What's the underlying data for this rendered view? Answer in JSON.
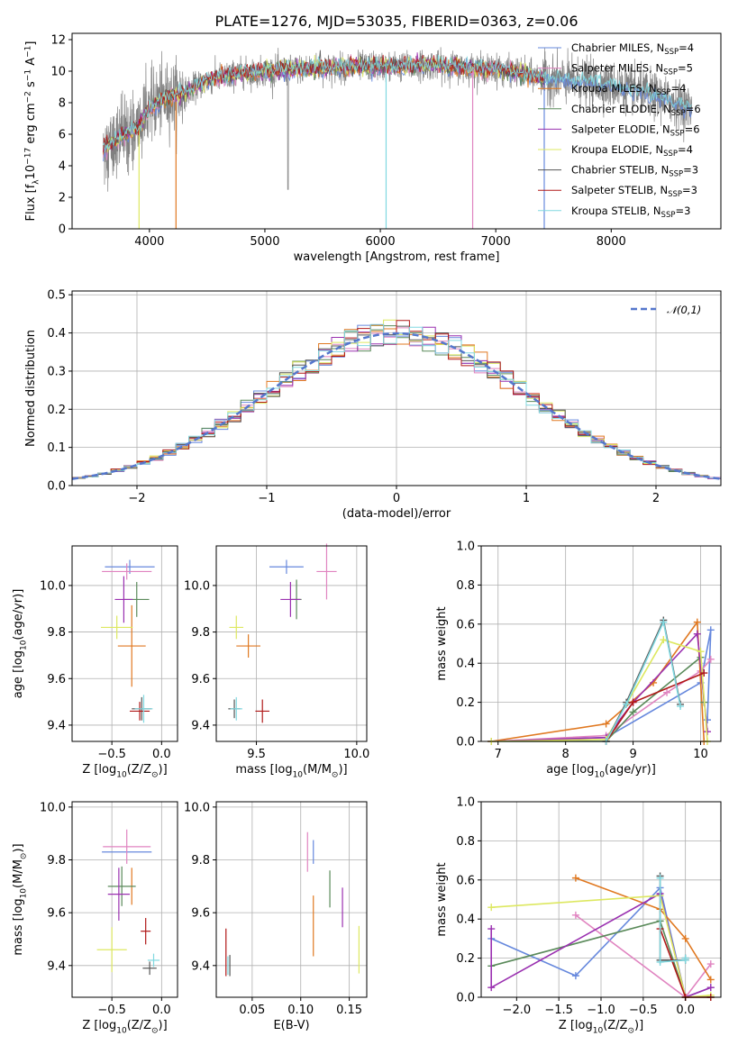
{
  "chart_data": [
    {
      "type": "line",
      "title": "PLATE=1276, MJD=53035, FIBERID=0363, z=0.06",
      "xlabel": "wavelength [Angstrom, rest frame]",
      "ylabel": "Flux [f$_\\lambda$10$^{-17}$ erg cm$^{-2}$ s$^{-1}$ A$^{-1}$]",
      "xlim": [
        3330,
        8950
      ],
      "ylim": [
        0,
        12.4
      ],
      "xticks": [
        "4000",
        "5000",
        "6000",
        "7000",
        "8000"
      ],
      "yticks": [
        "0",
        "2",
        "4",
        "6",
        "8",
        "10",
        "12"
      ],
      "grid": false,
      "legend_position": "upper-right",
      "series": [
        {
          "name": "Chabrier MILES, N",
          "sub": "SSP",
          "suffix": "=4",
          "color": "#6688dd"
        },
        {
          "name": "Salpeter MILES, N",
          "sub": "SSP",
          "suffix": "=5",
          "color": "#e084c0"
        },
        {
          "name": "Kroupa MILES, N",
          "sub": "SSP",
          "suffix": "=4",
          "color": "#e07820"
        },
        {
          "name": "Chabrier ELODIE, N",
          "sub": "SSP",
          "suffix": "=6",
          "color": "#5a8a5a"
        },
        {
          "name": "Salpeter ELODIE, N",
          "sub": "SSP",
          "suffix": "=6",
          "color": "#9a30b0"
        },
        {
          "name": "Kroupa ELODIE, N",
          "sub": "SSP",
          "suffix": "=4",
          "color": "#dde860"
        },
        {
          "name": "Chabrier STELIB, N",
          "sub": "SSP",
          "suffix": "=3",
          "color": "#555555"
        },
        {
          "name": "Salpeter STELIB, N",
          "sub": "SSP",
          "suffix": "=3",
          "color": "#b01818"
        },
        {
          "name": "Kroupa STELIB, N",
          "sub": "SSP",
          "suffix": "=3",
          "color": "#80d8e0"
        }
      ],
      "data_color": "#808080",
      "continuum": {
        "x": [
          3600,
          3700,
          3800,
          3900,
          4000,
          4100,
          4200,
          4300,
          4400,
          4500,
          4600,
          4700,
          4800,
          4900,
          5000,
          5200,
          5400,
          5600,
          5800,
          6000,
          6200,
          6400,
          6600,
          6800,
          7000,
          7200,
          7400,
          7600,
          7800,
          8000,
          8200,
          8400,
          8600,
          8700
        ],
        "y": [
          5.0,
          5.6,
          6.0,
          6.4,
          7.6,
          8.2,
          8.4,
          8.6,
          9.0,
          9.4,
          9.6,
          9.7,
          9.9,
          9.9,
          10.0,
          10.1,
          10.2,
          10.2,
          10.3,
          10.3,
          10.3,
          10.4,
          10.3,
          10.2,
          10.1,
          9.9,
          9.6,
          9.4,
          9.3,
          9.1,
          8.8,
          8.4,
          7.9,
          7.6
        ]
      }
    },
    {
      "type": "line",
      "xlabel": "(data-model)/error",
      "ylabel": "Normed distribution",
      "xlim": [
        -2.5,
        2.5
      ],
      "ylim": [
        0,
        0.51
      ],
      "xticks": [
        "−2",
        "−1",
        "0",
        "1",
        "2"
      ],
      "yticks": [
        "0.0",
        "0.1",
        "0.2",
        "0.3",
        "0.4",
        "0.5"
      ],
      "grid": true,
      "legend": "$\\mathcal{N}(0,1)$",
      "gaussian": {
        "mean": 0,
        "sigma": 1,
        "color": "#5577cc"
      },
      "hist_bin_width": 0.1
    },
    {
      "type": "scatter",
      "xlabel": "Z [log$_{10}$(Z/Z$_\\odot$)]",
      "ylabel": "age  [log$_{10}$(age/yr)]",
      "xlim": [
        -0.9,
        0.16
      ],
      "ylim": [
        9.33,
        10.17
      ],
      "xticks": [
        "−0.5",
        "0.0"
      ],
      "yticks": [
        "9.4",
        "9.6",
        "9.8",
        "10.0"
      ],
      "grid": true,
      "points": [
        {
          "x": -0.32,
          "y": 10.08,
          "dx": 0.5,
          "dy": 0.06,
          "color": "#6688dd"
        },
        {
          "x": -0.35,
          "y": 10.06,
          "dx": 0.5,
          "dy": 0.07,
          "color": "#e084c0"
        },
        {
          "x": -0.3,
          "y": 9.74,
          "dx": 0.28,
          "dy": 0.35,
          "color": "#e07820"
        },
        {
          "x": -0.25,
          "y": 9.94,
          "dx": 0.25,
          "dy": 0.15,
          "color": "#5a8a5a"
        },
        {
          "x": -0.38,
          "y": 9.94,
          "dx": 0.18,
          "dy": 0.2,
          "color": "#9a30b0"
        },
        {
          "x": -0.45,
          "y": 9.82,
          "dx": 0.32,
          "dy": 0.1,
          "color": "#dde860"
        },
        {
          "x": -0.2,
          "y": 9.47,
          "dx": 0.2,
          "dy": 0.1,
          "color": "#555555"
        },
        {
          "x": -0.22,
          "y": 9.46,
          "dx": 0.2,
          "dy": 0.08,
          "color": "#b01818"
        },
        {
          "x": -0.18,
          "y": 9.47,
          "dx": 0.18,
          "dy": 0.12,
          "color": "#80d8e0"
        }
      ]
    },
    {
      "type": "scatter",
      "xlabel": "mass [log$_{10}$(M/M$_\\odot$)]",
      "xlim": [
        9.3,
        10.05
      ],
      "ylim": [
        9.33,
        10.17
      ],
      "xticks": [
        "9.5",
        "10.0"
      ],
      "yticks": [
        "9.4",
        "9.6",
        "9.8",
        "10.0"
      ],
      "grid": true,
      "points": [
        {
          "x": 9.65,
          "y": 10.08,
          "dx": 0.17,
          "dy": 0.06,
          "color": "#6688dd"
        },
        {
          "x": 9.85,
          "y": 10.06,
          "dx": 0.1,
          "dy": 0.24,
          "color": "#e084c0"
        },
        {
          "x": 9.46,
          "y": 9.74,
          "dx": 0.12,
          "dy": 0.1,
          "color": "#e07820"
        },
        {
          "x": 9.7,
          "y": 9.94,
          "dx": 0.05,
          "dy": 0.17,
          "color": "#5a8a5a"
        },
        {
          "x": 9.67,
          "y": 9.94,
          "dx": 0.1,
          "dy": 0.15,
          "color": "#9a30b0"
        },
        {
          "x": 9.4,
          "y": 9.82,
          "dx": 0.07,
          "dy": 0.1,
          "color": "#dde860"
        },
        {
          "x": 9.39,
          "y": 9.47,
          "dx": 0.06,
          "dy": 0.08,
          "color": "#555555"
        },
        {
          "x": 9.53,
          "y": 9.46,
          "dx": 0.07,
          "dy": 0.1,
          "color": "#b01818"
        },
        {
          "x": 9.4,
          "y": 9.47,
          "dx": 0.06,
          "dy": 0.1,
          "color": "#80d8e0"
        }
      ]
    },
    {
      "type": "line",
      "xlabel": "age  [log$_{10}$(age/yr)]",
      "ylabel": "mass weight",
      "xlim": [
        6.75,
        10.3
      ],
      "ylim": [
        0,
        1.0
      ],
      "xticks": [
        "7",
        "8",
        "9",
        "10"
      ],
      "yticks": [
        "0.0",
        "0.2",
        "0.4",
        "0.6",
        "0.8",
        "1.0"
      ],
      "grid": true,
      "series": [
        {
          "color": "#6688dd",
          "x": [
            6.9,
            8.6,
            10.0,
            10.15,
            10.1
          ],
          "y": [
            0.0,
            0.02,
            0.3,
            0.57,
            0.11
          ]
        },
        {
          "color": "#e084c0",
          "x": [
            6.9,
            8.6,
            9.5,
            10.0,
            10.15
          ],
          "y": [
            0.0,
            0.03,
            0.25,
            0.36,
            0.42
          ]
        },
        {
          "color": "#e07820",
          "x": [
            6.9,
            8.6,
            9.3,
            9.95,
            10.05
          ],
          "y": [
            0.0,
            0.09,
            0.3,
            0.61,
            0.0
          ]
        },
        {
          "color": "#5a8a5a",
          "x": [
            6.9,
            8.6,
            9.0,
            10.0,
            10.05
          ],
          "y": [
            0.0,
            0.0,
            0.15,
            0.43,
            0.2
          ]
        },
        {
          "color": "#9a30b0",
          "x": [
            6.9,
            8.6,
            9.0,
            9.95,
            10.1
          ],
          "y": [
            0.0,
            0.02,
            0.2,
            0.55,
            0.05
          ]
        },
        {
          "color": "#dde860",
          "x": [
            6.9,
            8.6,
            9.45,
            10.0,
            10.1
          ],
          "y": [
            0.0,
            0.01,
            0.52,
            0.46,
            0.0
          ]
        },
        {
          "color": "#555555",
          "x": [
            8.6,
            8.9,
            9.45,
            9.7
          ],
          "y": [
            0.0,
            0.2,
            0.62,
            0.19
          ]
        },
        {
          "color": "#b01818",
          "x": [
            8.6,
            9.0,
            10.05
          ],
          "y": [
            0.0,
            0.2,
            0.35
          ]
        },
        {
          "color": "#80d8e0",
          "x": [
            8.6,
            8.9,
            9.45,
            9.7
          ],
          "y": [
            0.0,
            0.19,
            0.61,
            0.18
          ]
        }
      ]
    },
    {
      "type": "scatter",
      "xlabel": "Z [log$_{10}$(Z/Z$_\\odot$)]",
      "ylabel": "mass [log$_{10}$(M/M$_\\odot$)]",
      "xlim": [
        -0.9,
        0.16
      ],
      "ylim": [
        9.28,
        10.02
      ],
      "xticks": [
        "−0.5",
        "0.0"
      ],
      "yticks": [
        "9.4",
        "9.6",
        "9.8",
        "10.0"
      ],
      "grid": true,
      "points": [
        {
          "x": -0.35,
          "y": 9.83,
          "dx": 0.5,
          "dy": 0.0,
          "color": "#6688dd"
        },
        {
          "x": -0.35,
          "y": 9.85,
          "dx": 0.48,
          "dy": 0.13,
          "color": "#e084c0"
        },
        {
          "x": -0.3,
          "y": 9.7,
          "dx": 0.0,
          "dy": 0.14,
          "color": "#e07820"
        },
        {
          "x": -0.4,
          "y": 9.7,
          "dx": 0.28,
          "dy": 0.15,
          "color": "#5a8a5a"
        },
        {
          "x": -0.43,
          "y": 9.67,
          "dx": 0.22,
          "dy": 0.2,
          "color": "#9a30b0"
        },
        {
          "x": -0.5,
          "y": 9.46,
          "dx": 0.3,
          "dy": 0.17,
          "color": "#dde860"
        },
        {
          "x": -0.12,
          "y": 9.39,
          "dx": 0.14,
          "dy": 0.05,
          "color": "#555555"
        },
        {
          "x": -0.16,
          "y": 9.53,
          "dx": 0.1,
          "dy": 0.1,
          "color": "#b01818"
        },
        {
          "x": -0.08,
          "y": 9.42,
          "dx": 0.12,
          "dy": 0.05,
          "color": "#80d8e0"
        }
      ]
    },
    {
      "type": "scatter",
      "xlabel": "E(B-V)",
      "xlim": [
        0.013,
        0.168
      ],
      "ylim": [
        9.28,
        10.02
      ],
      "xticks": [
        "0.05",
        "0.10",
        "0.15"
      ],
      "yticks": [
        "9.4",
        "9.6",
        "9.8",
        "10.0"
      ],
      "grid": true,
      "points": [
        {
          "x": 0.113,
          "y": 9.83,
          "dx": 0.0,
          "dy": 0.09,
          "color": "#6688dd"
        },
        {
          "x": 0.107,
          "y": 9.83,
          "dx": 0.0,
          "dy": 0.15,
          "color": "#e084c0"
        },
        {
          "x": 0.113,
          "y": 9.55,
          "dx": 0.0,
          "dy": 0.23,
          "color": "#e07820"
        },
        {
          "x": 0.13,
          "y": 9.69,
          "dx": 0.0,
          "dy": 0.14,
          "color": "#5a8a5a"
        },
        {
          "x": 0.143,
          "y": 9.62,
          "dx": 0.0,
          "dy": 0.15,
          "color": "#9a30b0"
        },
        {
          "x": 0.16,
          "y": 9.46,
          "dx": 0.0,
          "dy": 0.18,
          "color": "#dde860"
        },
        {
          "x": 0.027,
          "y": 9.4,
          "dx": 0.0,
          "dy": 0.08,
          "color": "#555555"
        },
        {
          "x": 0.023,
          "y": 9.45,
          "dx": 0.0,
          "dy": 0.18,
          "color": "#b01818"
        },
        {
          "x": 0.025,
          "y": 9.4,
          "dx": 0.0,
          "dy": 0.07,
          "color": "#80d8e0"
        }
      ]
    },
    {
      "type": "line",
      "xlabel": "Z [log$_{10}$(Z/Z$_\\odot$)]",
      "ylabel": "mass weight",
      "xlim": [
        -2.42,
        0.42
      ],
      "ylim": [
        0,
        1.0
      ],
      "xticks": [
        "−2.0",
        "−1.5",
        "−1.0",
        "−0.5",
        "0.0"
      ],
      "yticks": [
        "0.0",
        "0.2",
        "0.4",
        "0.6",
        "0.8",
        "1.0"
      ],
      "grid": true,
      "series": [
        {
          "color": "#6688dd",
          "x": [
            -2.3,
            -1.3,
            -0.3,
            0.0,
            0.3
          ],
          "y": [
            0.3,
            0.11,
            0.56,
            0.0,
            0.05
          ]
        },
        {
          "color": "#e084c0",
          "x": [
            -1.3,
            0.0,
            0.3
          ],
          "y": [
            0.42,
            0.0,
            0.17
          ]
        },
        {
          "color": "#e07820",
          "x": [
            -1.3,
            -0.3,
            0.0,
            0.3
          ],
          "y": [
            0.61,
            0.45,
            0.3,
            0.09
          ]
        },
        {
          "color": "#5a8a5a",
          "x": [
            -2.3,
            -0.3,
            0.0,
            0.3
          ],
          "y": [
            0.16,
            0.39,
            0.0,
            0.0
          ]
        },
        {
          "color": "#9a30b0",
          "x": [
            -2.3,
            -2.3,
            -0.3,
            0.0,
            0.3
          ],
          "y": [
            0.35,
            0.05,
            0.53,
            0.0,
            0.05
          ]
        },
        {
          "color": "#dde860",
          "x": [
            -2.3,
            -0.3,
            0.0,
            0.3
          ],
          "y": [
            0.46,
            0.52,
            0.0,
            0.01
          ]
        },
        {
          "color": "#555555",
          "x": [
            -0.3,
            -0.3,
            0.0,
            0.0
          ],
          "y": [
            0.62,
            0.19,
            0.19,
            0.2
          ]
        },
        {
          "color": "#b01818",
          "x": [
            -0.3,
            0.0,
            0.3
          ],
          "y": [
            0.35,
            0.0,
            0.0
          ]
        },
        {
          "color": "#80d8e0",
          "x": [
            -0.3,
            -0.3,
            0.0,
            0.0
          ],
          "y": [
            0.61,
            0.18,
            0.19,
            0.2
          ]
        }
      ]
    }
  ]
}
